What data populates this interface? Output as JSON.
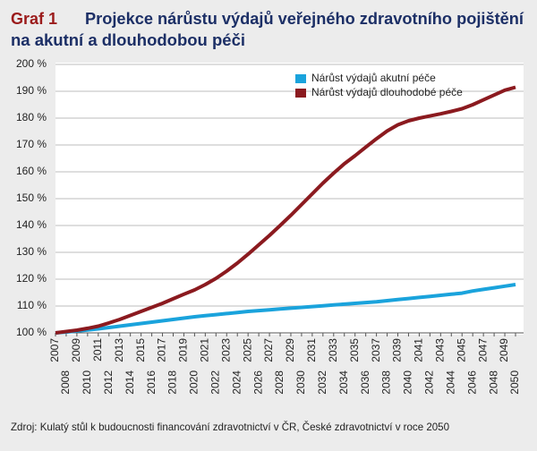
{
  "chart_data": {
    "type": "line",
    "label": "Graf 1",
    "title": [
      "Projekce nárůstu výdajů veřejného zdravotního pojištění",
      "na akutní a dlouhodobou péči"
    ],
    "source": "Zdroj: Kulatý stůl k budoucnosti financování zdravotnictví v ČR, České zdravotnictví v roce 2050",
    "x": [
      2007,
      2008,
      2009,
      2010,
      2011,
      2012,
      2013,
      2014,
      2015,
      2016,
      2017,
      2018,
      2019,
      2020,
      2021,
      2022,
      2023,
      2024,
      2025,
      2026,
      2027,
      2028,
      2029,
      2030,
      2031,
      2032,
      2033,
      2034,
      2035,
      2036,
      2037,
      2038,
      2039,
      2040,
      2041,
      2042,
      2043,
      2044,
      2045,
      2046,
      2047,
      2048,
      2049,
      2050
    ],
    "xlim": [
      2007,
      2050
    ],
    "ylim": [
      100,
      200
    ],
    "yticks": [
      {
        "value": 100,
        "label": "100 %"
      },
      {
        "value": 110,
        "label": "110 %"
      },
      {
        "value": 120,
        "label": "120 %"
      },
      {
        "value": 130,
        "label": "130 %"
      },
      {
        "value": 140,
        "label": "140 %"
      },
      {
        "value": 150,
        "label": "150 %"
      },
      {
        "value": 160,
        "label": "160 %"
      },
      {
        "value": 170,
        "label": "170 %"
      },
      {
        "value": 180,
        "label": "180 %"
      },
      {
        "value": 190,
        "label": "190 %"
      },
      {
        "value": 200,
        "label": "200 %"
      }
    ],
    "grid": true,
    "legend": "upper right",
    "series": [
      {
        "name": "Nárůst výdajů akutní péče",
        "color": "#1aa3dc",
        "values": [
          100,
          100.3,
          100.7,
          101.1,
          101.5,
          102,
          102.5,
          103,
          103.5,
          104,
          104.5,
          105,
          105.5,
          106,
          106.4,
          106.8,
          107.2,
          107.6,
          108,
          108.3,
          108.6,
          108.9,
          109.2,
          109.5,
          109.8,
          110.1,
          110.4,
          110.7,
          111,
          111.3,
          111.6,
          112,
          112.4,
          112.8,
          113.2,
          113.6,
          114,
          114.4,
          114.8,
          115.6,
          116.2,
          116.8,
          117.4,
          118
        ]
      },
      {
        "name": "Nárůst výdajů dlouhodobé péče",
        "color": "#8b1a1f",
        "values": [
          100,
          100.5,
          101,
          101.7,
          102.5,
          103.7,
          105,
          106.5,
          108,
          109.5,
          111,
          112.7,
          114.4,
          116,
          118,
          120.3,
          123,
          126,
          129.3,
          132.8,
          136.3,
          140,
          143.8,
          147.8,
          151.8,
          155.8,
          159.5,
          163,
          166,
          169.2,
          172.3,
          175.2,
          177.5,
          179,
          180,
          180.8,
          181.6,
          182.5,
          183.5,
          185,
          186.8,
          188.6,
          190.4,
          191.5
        ]
      }
    ]
  }
}
